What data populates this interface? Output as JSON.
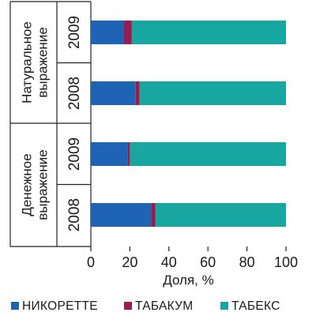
{
  "chart_data": {
    "type": "bar",
    "orientation": "horizontal",
    "stacked": true,
    "groups": [
      {
        "label": "Натуральное выражение",
        "rows": [
          {
            "year": "2009",
            "values": [
              17,
              4,
              79
            ]
          },
          {
            "year": "2008",
            "values": [
              23,
              2,
              75
            ]
          }
        ]
      },
      {
        "label": "Денежное выражение",
        "rows": [
          {
            "year": "2009",
            "values": [
              19,
              1,
              80
            ]
          },
          {
            "year": "2008",
            "values": [
              31,
              2,
              67
            ]
          }
        ]
      }
    ],
    "series": [
      {
        "name": "НИКОРЕТТЕ",
        "color": "#1f63b5"
      },
      {
        "name": "ТАБАКУМ",
        "color": "#9b1b50"
      },
      {
        "name": "ТАБЕКС",
        "color": "#17a7a0"
      }
    ],
    "xlabel": "Доля, %",
    "xlim": [
      0,
      100
    ],
    "xticks": [
      "0",
      "20",
      "40",
      "60",
      "80",
      "100"
    ],
    "grid": false,
    "legend_position": "bottom"
  }
}
